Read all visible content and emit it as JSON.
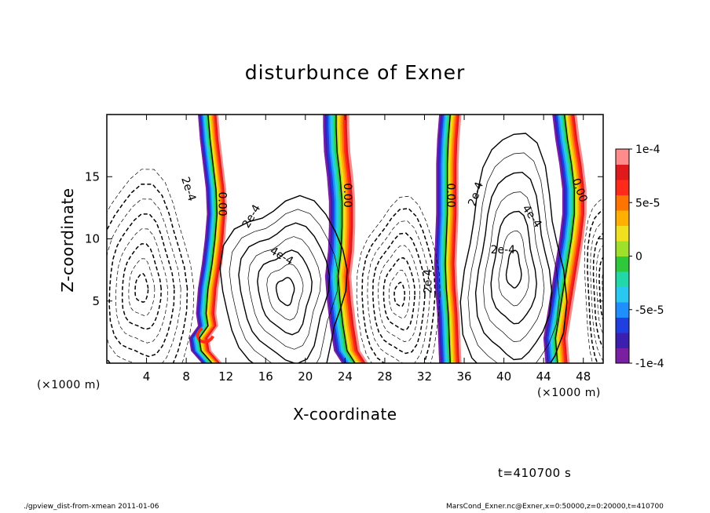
{
  "chart_data": {
    "type": "heatmap",
    "title": "disturbunce of Exner",
    "xlabel": "X-coordinate",
    "ylabel": "Z-coordinate",
    "x_unit": "(×1000 m)",
    "xlim": [
      0,
      50
    ],
    "ylim": [
      0,
      20
    ],
    "x_ticks": [
      "4",
      "8",
      "12",
      "16",
      "20",
      "24",
      "28",
      "32",
      "36",
      "40",
      "44",
      "48"
    ],
    "y_ticks": [
      "5",
      "10",
      "15"
    ],
    "colorbar": {
      "range": [
        -0.0001,
        0.0001
      ],
      "tick_labels": [
        "1e-4",
        "5e-5",
        "0",
        "-5e-5",
        "-1e-4"
      ],
      "colors": [
        "#7a1fa2",
        "#3b1fb0",
        "#1f3fe0",
        "#1f8fff",
        "#28c8f0",
        "#22d8a8",
        "#2ec83a",
        "#9ee02a",
        "#f0e020",
        "#ffb000",
        "#ff7400",
        "#ff2a1a",
        "#e01a1a",
        "#ff8b8b"
      ]
    },
    "contour_labels": [
      "2e-4",
      "0.00",
      "2e-4",
      "4e-4",
      "0.00",
      "2e-4",
      "0.00",
      "2e-4",
      "4e-4",
      "0.00",
      "2e-4"
    ],
    "features": {
      "zero_bands_x": [
        11,
        24,
        35,
        47
      ],
      "positive_cells_x": [
        18,
        41
      ],
      "negative_cells_x": [
        3.5,
        29.5
      ]
    }
  },
  "time_label": "t=410700 s",
  "footer_left": "./gpview_dist-from-xmean  2011-01-06",
  "footer_right": "MarsCond_Exner.nc@Exner,x=0:50000,z=0:20000,t=410700"
}
